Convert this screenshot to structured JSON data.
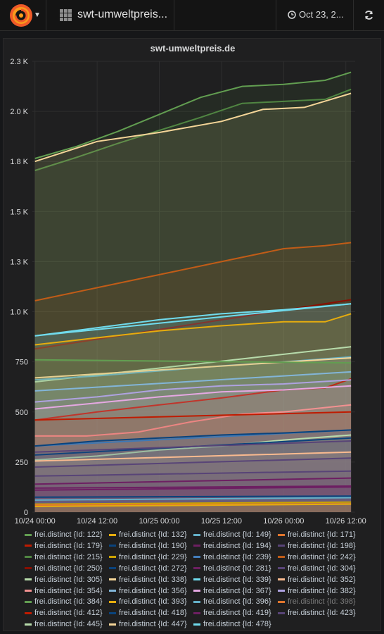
{
  "topbar": {
    "dashboard_title": "swt-umweltpreis...",
    "time_range": "Oct 23, 2..."
  },
  "panel": {
    "title": "swt-umweltpreis.de"
  },
  "colors": {
    "background": "#161719",
    "panel": "#1f1f20",
    "grid": "#2e2e2e"
  },
  "chart_data": {
    "type": "area",
    "title": "swt-umweltpreis.de",
    "stacked": false,
    "fill": true,
    "grid": true,
    "legend_placement": "bottom",
    "y_ticks": [
      "0",
      "250",
      "500",
      "750",
      "1.0 K",
      "1.3 K",
      "1.5 K",
      "1.8 K",
      "2.0 K",
      "2.3 K"
    ],
    "y_tick_values": [
      0,
      250,
      500,
      750,
      1000,
      1250,
      1500,
      1750,
      2000,
      2250
    ],
    "ylim": [
      0,
      2250
    ],
    "x_ticks": [
      "10/24 00:00",
      "10/24 12:00",
      "10/25 00:00",
      "10/25 12:00",
      "10/26 00:00",
      "10/26 12:00"
    ],
    "x_tick_hours": [
      0,
      12,
      24,
      36,
      48,
      60
    ],
    "xlim_hours": [
      -0.5,
      61.8
    ],
    "x_unit": "hours since 10/24 00:00",
    "series": [
      {
        "name": "frei.distinct {Id: 122}",
        "color": "#629e51",
        "points": [
          [
            0,
            1765
          ],
          [
            8,
            1825
          ],
          [
            16,
            1900
          ],
          [
            24,
            1985
          ],
          [
            32,
            2070
          ],
          [
            40,
            2125
          ],
          [
            48,
            2135
          ],
          [
            56,
            2155
          ],
          [
            61,
            2195
          ]
        ]
      },
      {
        "name": "frei.distinct {Id: 132}",
        "color": "#e5ac0e",
        "points": [
          [
            0,
            28
          ],
          [
            61,
            40
          ]
        ]
      },
      {
        "name": "frei.distinct {Id: 149}",
        "color": "#64b0c8",
        "points": [
          [
            0,
            60
          ],
          [
            61,
            72
          ]
        ]
      },
      {
        "name": "frei.distinct {Id: 171}",
        "color": "#e0752d",
        "points": [
          [
            0,
            35
          ],
          [
            61,
            42
          ]
        ]
      },
      {
        "name": "frei.distinct {Id: 179}",
        "color": "#bf1b00",
        "points": [
          [
            0,
            460
          ],
          [
            61,
            500
          ]
        ]
      },
      {
        "name": "frei.distinct {Id: 190}",
        "color": "#0a437c",
        "points": [
          [
            0,
            75
          ],
          [
            61,
            80
          ]
        ]
      },
      {
        "name": "frei.distinct {Id: 194}",
        "color": "#6d1f62",
        "points": [
          [
            0,
            110
          ],
          [
            61,
            125
          ]
        ]
      },
      {
        "name": "frei.distinct {Id: 198}",
        "color": "#584477",
        "points": [
          [
            0,
            180
          ],
          [
            61,
            205
          ]
        ]
      },
      {
        "name": "frei.distinct {Id: 215}",
        "color": "#508642",
        "points": [
          [
            0,
            1705
          ],
          [
            8,
            1770
          ],
          [
            16,
            1840
          ],
          [
            24,
            1905
          ],
          [
            32,
            1970
          ],
          [
            40,
            2040
          ],
          [
            48,
            2050
          ],
          [
            56,
            2060
          ],
          [
            61,
            2110
          ]
        ]
      },
      {
        "name": "frei.distinct {Id: 229}",
        "color": "#cca300",
        "points": [
          [
            0,
            40
          ],
          [
            61,
            50
          ]
        ]
      },
      {
        "name": "frei.distinct {Id: 239}",
        "color": "#447ebc",
        "points": [
          [
            0,
            330
          ],
          [
            61,
            410
          ]
        ]
      },
      {
        "name": "frei.distinct {Id: 242}",
        "color": "#c15c17",
        "points": [
          [
            0,
            1055
          ],
          [
            12,
            1120
          ],
          [
            24,
            1185
          ],
          [
            36,
            1250
          ],
          [
            48,
            1315
          ],
          [
            56,
            1330
          ],
          [
            61,
            1345
          ]
        ]
      },
      {
        "name": "frei.distinct {Id: 250}",
        "color": "#890f02",
        "points": [
          [
            0,
            815
          ],
          [
            61,
            1060
          ]
        ]
      },
      {
        "name": "frei.distinct {Id: 272}",
        "color": "#0a437c",
        "points": [
          [
            0,
            285
          ],
          [
            61,
            370
          ]
        ]
      },
      {
        "name": "frei.distinct {Id: 281}",
        "color": "#6d1f62",
        "points": [
          [
            0,
            140
          ],
          [
            61,
            170
          ]
        ]
      },
      {
        "name": "frei.distinct {Id: 304}",
        "color": "#584477",
        "points": [
          [
            0,
            225
          ],
          [
            61,
            270
          ]
        ]
      },
      {
        "name": "frei.distinct {Id: 305}",
        "color": "#b7dbab",
        "points": [
          [
            0,
            650
          ],
          [
            61,
            825
          ]
        ]
      },
      {
        "name": "frei.distinct {Id: 338}",
        "color": "#f4d598",
        "points": [
          [
            0,
            670
          ],
          [
            61,
            770
          ]
        ]
      },
      {
        "name": "frei.distinct {Id: 339}",
        "color": "#70dbed",
        "points": [
          [
            0,
            880
          ],
          [
            12,
            920
          ],
          [
            24,
            960
          ],
          [
            36,
            990
          ],
          [
            48,
            1010
          ],
          [
            61,
            1040
          ]
        ]
      },
      {
        "name": "frei.distinct {Id: 352}",
        "color": "#f9ba8f",
        "points": [
          [
            0,
            255
          ],
          [
            61,
            300
          ]
        ]
      },
      {
        "name": "frei.distinct {Id: 354}",
        "color": "#f29191",
        "points": [
          [
            0,
            380
          ],
          [
            10,
            380
          ],
          [
            20,
            400
          ],
          [
            30,
            450
          ],
          [
            40,
            490
          ],
          [
            48,
            500
          ],
          [
            61,
            535
          ]
        ]
      },
      {
        "name": "frei.distinct {Id: 356}",
        "color": "#82b5d8",
        "points": [
          [
            0,
            605
          ],
          [
            61,
            700
          ]
        ]
      },
      {
        "name": "frei.distinct {Id: 367}",
        "color": "#e5a8e2",
        "points": [
          [
            0,
            515
          ],
          [
            12,
            545
          ],
          [
            24,
            575
          ],
          [
            36,
            600
          ],
          [
            48,
            610
          ],
          [
            61,
            630
          ]
        ]
      },
      {
        "name": "frei.distinct {Id: 382}",
        "color": "#aea2e0",
        "points": [
          [
            0,
            550
          ],
          [
            12,
            575
          ],
          [
            24,
            610
          ],
          [
            36,
            630
          ],
          [
            48,
            640
          ],
          [
            61,
            660
          ]
        ]
      },
      {
        "name": "frei.distinct {Id: 384}",
        "color": "#629e51",
        "points": [
          [
            0,
            760
          ],
          [
            61,
            745
          ]
        ]
      },
      {
        "name": "frei.distinct {Id: 393}",
        "color": "#e5ac0e",
        "points": [
          [
            0,
            835
          ],
          [
            12,
            870
          ],
          [
            24,
            905
          ],
          [
            36,
            930
          ],
          [
            48,
            950
          ],
          [
            56,
            950
          ],
          [
            61,
            990
          ]
        ]
      },
      {
        "name": "frei.distinct {Id: 396}",
        "color": "#64b0c8",
        "points": [
          [
            0,
            660
          ],
          [
            12,
            680
          ],
          [
            24,
            705
          ],
          [
            36,
            730
          ],
          [
            48,
            750
          ],
          [
            61,
            775
          ]
        ]
      },
      {
        "name": "frei.distinct {Id: 398}",
        "color": "#e0752d",
        "hidden": true,
        "points": [
          [
            0,
            310
          ],
          [
            61,
            340
          ]
        ]
      },
      {
        "name": "frei.distinct {Id: 412}",
        "color": "#bf1b00",
        "points": [
          [
            0,
            460
          ],
          [
            12,
            500
          ],
          [
            24,
            535
          ],
          [
            36,
            570
          ],
          [
            48,
            610
          ],
          [
            56,
            620
          ],
          [
            61,
            665
          ]
        ]
      },
      {
        "name": "frei.distinct {Id: 418}",
        "color": "#0a437c",
        "points": [
          [
            0,
            330
          ],
          [
            12,
            355
          ],
          [
            24,
            370
          ],
          [
            36,
            385
          ],
          [
            48,
            395
          ],
          [
            61,
            410
          ]
        ]
      },
      {
        "name": "frei.distinct {Id: 419}",
        "color": "#6d1f62",
        "points": [
          [
            0,
            120
          ],
          [
            61,
            130
          ]
        ]
      },
      {
        "name": "frei.distinct {Id: 423}",
        "color": "#584477",
        "points": [
          [
            0,
            300
          ],
          [
            61,
            355
          ]
        ]
      },
      {
        "name": "frei.distinct {Id: 445}",
        "color": "#b7dbab",
        "points": [
          [
            0,
            260
          ],
          [
            12,
            280
          ],
          [
            24,
            310
          ],
          [
            36,
            330
          ],
          [
            48,
            360
          ],
          [
            61,
            385
          ]
        ]
      },
      {
        "name": "frei.distinct {Id: 447}",
        "color": "#f4d598",
        "points": [
          [
            0,
            1750
          ],
          [
            12,
            1850
          ],
          [
            24,
            1895
          ],
          [
            36,
            1950
          ],
          [
            44,
            2010
          ],
          [
            52,
            2020
          ],
          [
            61,
            2090
          ]
        ]
      },
      {
        "name": "frei.distinct {Id: 478}",
        "color": "#70dbed",
        "points": [
          [
            0,
            880
          ],
          [
            61,
            1040
          ]
        ]
      }
    ]
  }
}
